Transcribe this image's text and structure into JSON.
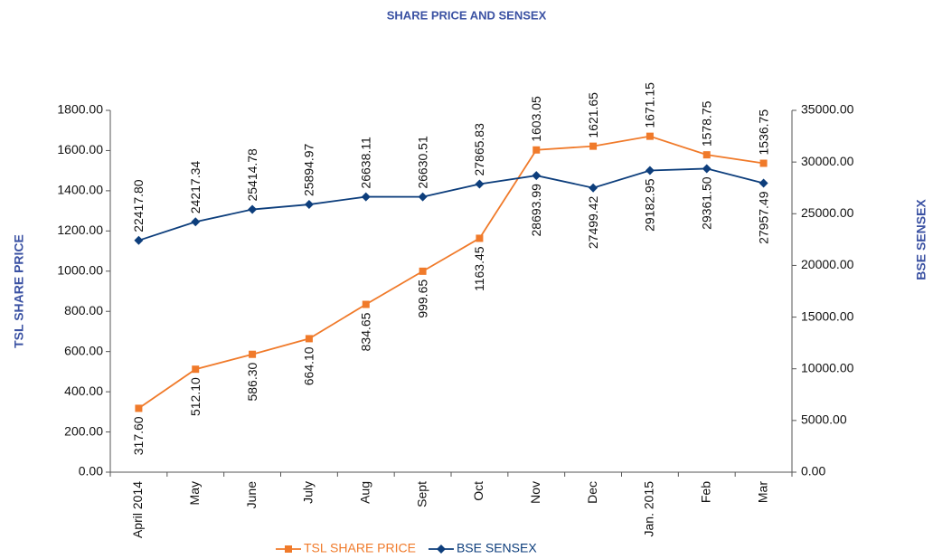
{
  "chart_data": {
    "type": "line",
    "title": "SHARE PRICE AND SENSEX",
    "y_label": "TSL SHARE PRICE",
    "y2_label": "BSE SENSEX",
    "categories": [
      "April 2014",
      "May",
      "June",
      "July",
      "Aug",
      "Sept",
      "Oct",
      "Nov",
      "Dec",
      "Jan. 2015",
      "Feb",
      "Mar"
    ],
    "series": [
      {
        "name": "TSL SHARE PRICE",
        "color": "#f07a2a",
        "marker": "square",
        "axis": "y",
        "values": [
          317.6,
          512.1,
          586.3,
          664.1,
          834.65,
          999.65,
          1163.45,
          1603.05,
          1621.65,
          1671.15,
          1578.75,
          1536.75
        ],
        "value_labels": [
          "317.60",
          "512.10",
          "586.30",
          "664.10",
          "834.65",
          "999.65",
          "1163.45",
          "1603.05",
          "1621.65",
          "1671.15",
          "1578.75",
          "1536.75"
        ]
      },
      {
        "name": "BSE SENSEX",
        "color": "#0d3e7c",
        "marker": "diamond",
        "axis": "y2",
        "values": [
          22417.8,
          24217.34,
          25414.78,
          25894.97,
          26638.11,
          26630.51,
          27865.83,
          28693.99,
          27499.42,
          29182.95,
          29361.5,
          27957.49
        ],
        "value_labels": [
          "22417.80",
          "24217.34",
          "25414.78",
          "25894.97",
          "26638.11",
          "26630.51",
          "27865.83",
          "28693.99",
          "27499.42",
          "29182.95",
          "29361.50",
          "27957.49"
        ]
      }
    ],
    "ylim": [
      0,
      1800
    ],
    "yticks": [
      {
        "value": 0,
        "label": "0.00"
      },
      {
        "value": 200,
        "label": "200.00"
      },
      {
        "value": 400,
        "label": "400.00"
      },
      {
        "value": 600,
        "label": "600.00"
      },
      {
        "value": 800,
        "label": "800.00"
      },
      {
        "value": 1000,
        "label": "1000.00"
      },
      {
        "value": 1200,
        "label": "1200.00"
      },
      {
        "value": 1400,
        "label": "1400.00"
      },
      {
        "value": 1600,
        "label": "1600.00"
      },
      {
        "value": 1800,
        "label": "1800.00"
      }
    ],
    "y2lim": [
      0,
      35000
    ],
    "y2ticks": [
      {
        "value": 0,
        "label": "0.00"
      },
      {
        "value": 5000,
        "label": "5000.00"
      },
      {
        "value": 10000,
        "label": "10000.00"
      },
      {
        "value": 15000,
        "label": "15000.00"
      },
      {
        "value": 20000,
        "label": "20000.00"
      },
      {
        "value": 25000,
        "label": "25000.00"
      },
      {
        "value": 30000,
        "label": "30000.00"
      },
      {
        "value": 35000,
        "label": "35000.00"
      }
    ],
    "legend": "bottom",
    "grid": false
  }
}
